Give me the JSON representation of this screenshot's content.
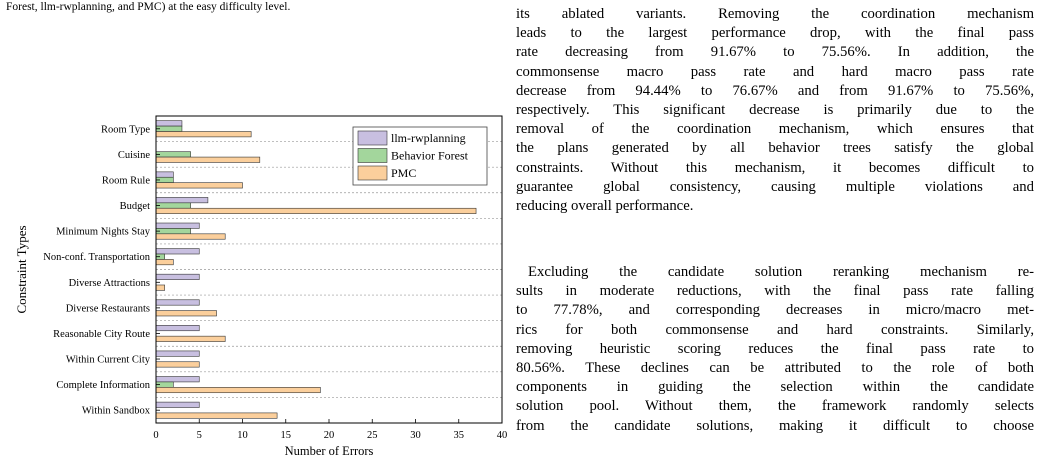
{
  "caption_tail": "Forest, llm-rwplanning, and PMC) at the easy difficulty level.",
  "chart_data": {
    "type": "bar",
    "orientation": "horizontal",
    "categories": [
      "Room Type",
      "Cuisine",
      "Room Rule",
      "Budget",
      "Minimum Nights Stay",
      "Non-conf. Transportation",
      "Diverse Attractions",
      "Diverse Restaurants",
      "Reasonable City Route",
      "Within Current City",
      "Complete Information",
      "Within Sandbox"
    ],
    "series": [
      {
        "name": "llm-rwplanning",
        "color": "#c8bfe0",
        "values": [
          3,
          0,
          2,
          6,
          5,
          5,
          5,
          5,
          5,
          5,
          5,
          5
        ]
      },
      {
        "name": "Behavior Forest",
        "color": "#a3d69c",
        "values": [
          3,
          4,
          2,
          4,
          4,
          1,
          0,
          0,
          0,
          0,
          2,
          0
        ]
      },
      {
        "name": "PMC",
        "color": "#fbcf9c",
        "values": [
          11,
          12,
          10,
          37,
          8,
          2,
          1,
          7,
          8,
          5,
          19,
          14
        ]
      }
    ],
    "xlabel": "Number of Errors",
    "ylabel": "Constraint Types",
    "xlim": [
      0,
      40
    ],
    "xticks": [
      "0",
      "5",
      "10",
      "15",
      "20",
      "25",
      "30",
      "35",
      "40"
    ],
    "legend": "top-right",
    "grid": "horizontal dashed"
  },
  "text": {
    "p1": [
      "its ablated variants. Removing the coordination mechanism",
      "leads to the largest performance drop, with the final pass",
      "rate decreasing from 91.67% to 75.56%. In addition, the",
      "commonsense macro pass rate and hard macro pass rate",
      "decrease from 94.44% to 76.67% and from 91.67% to 75.56%,",
      "respectively. This significant decrease is primarily due to the",
      "removal of the coordination mechanism, which ensures that",
      "the plans generated by all behavior trees satisfy the global",
      "constraints. Without this mechanism, it becomes difficult to",
      "guarantee global consistency, causing multiple violations and",
      "reducing overall performance."
    ],
    "p2": [
      "Excluding the candidate solution reranking mechanism re-",
      "sults in moderate reductions, with the final pass rate falling",
      "to 77.78%, and corresponding decreases in micro/macro met-",
      "rics for both commonsense and hard constraints. Similarly,",
      "removing heuristic scoring reduces the final pass rate to",
      "80.56%. These declines can be attributed to the role of both",
      "components in guiding the selection within the candidate",
      "solution pool. Without them, the framework randomly selects",
      "from the candidate solutions, making it difficult to choose"
    ]
  }
}
